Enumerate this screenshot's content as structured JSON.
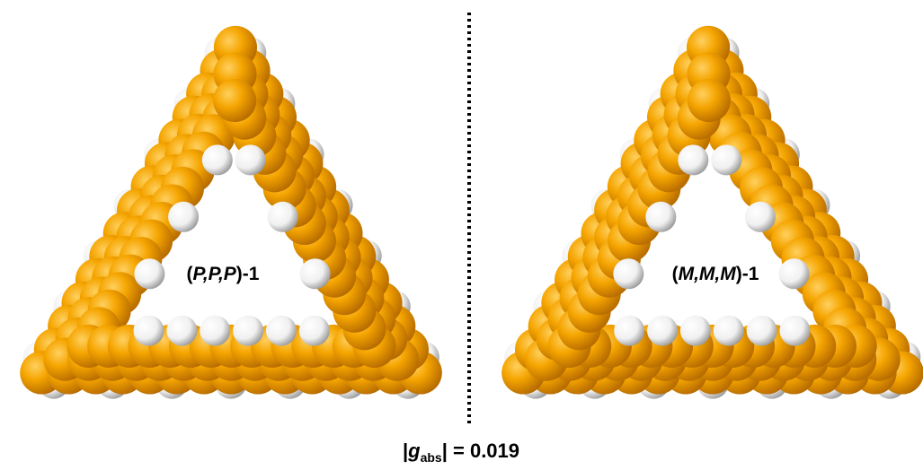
{
  "left_label": {
    "open": "(",
    "italic": "P,P,P",
    "close": ")-1"
  },
  "right_label": {
    "open": "(",
    "italic": "M,M,M",
    "close": ")-1"
  },
  "equation": {
    "prefix": "|",
    "symbol": "g",
    "subscript": "abs",
    "suffix": "| = ",
    "value": "0.019"
  }
}
